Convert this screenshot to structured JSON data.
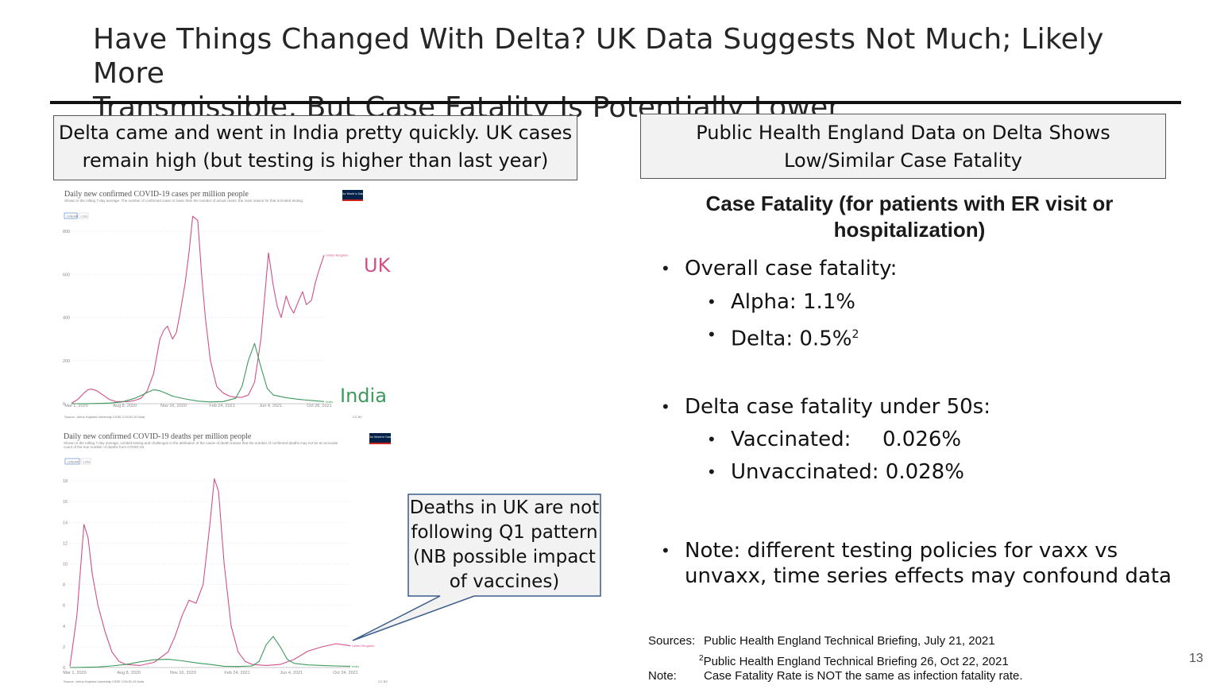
{
  "slide": {
    "title_line1": "Have Things Changed With Delta?  UK Data Suggests Not Much; Likely More",
    "title_line2": "Transmissible, But Case Fatality Is Potentially Lower",
    "page_number": "13"
  },
  "left_box": {
    "line1": "Delta came and went in India pretty quickly. UK cases",
    "line2": "remain high (but testing is higher than last year)"
  },
  "right_box": {
    "line1": "Public Health England Data on Delta Shows",
    "line2": "Low/Similar Case Fatality"
  },
  "case_fatality": {
    "heading_line1": "Case Fatality (for patients with ER visit or",
    "heading_line2": "hospitalization)",
    "overall_label": "Overall case fatality:",
    "alpha": "Alpha:  1.1%",
    "delta": "Delta:   0.5%",
    "delta_sup": "2",
    "under50_label": "Delta case fatality under 50s:",
    "vaccinated_label": "Vaccinated:",
    "vaccinated_value": "0.026%",
    "unvaccinated": "Unvaccinated:  0.028%",
    "note_line1": "Note: different testing policies for vaxx vs",
    "note_line2": "unvaxx, time series effects may confound data"
  },
  "sources": {
    "label_sources": "Sources:",
    "source1": "Public Health England Technical Briefing, July 21, 2021",
    "source2_sup": "2",
    "source2": "Public Health England Technical Briefing 26, Oct 22, 2021",
    "label_note": "Note:",
    "note": "Case Fatality Rate is NOT the same as infection fatality rate."
  },
  "annotations": {
    "uk": "UK",
    "india": "India",
    "callout_line1": "Deaths in UK are not",
    "callout_line2": "following Q1 pattern",
    "callout_line3": "(NB possible impact",
    "callout_line4": "of vaccines)"
  },
  "colors": {
    "uk": "#d0508a",
    "india": "#3d9a5c",
    "owid_navy": "#002147",
    "owid_red": "#ce261e"
  },
  "chart_data": [
    {
      "type": "line",
      "title": "Daily new confirmed COVID-19 cases per million people",
      "subtitle": "Shown is the rolling 7-day average. The number of confirmed cases is lower than the number of actual cases; the main reason for that is limited testing.",
      "toggle": [
        "LINEAR",
        "LOG"
      ],
      "logo": "Our World in Data",
      "source": "Source: Johns Hopkins University CSSE COVID-19 Data",
      "license": "CC BY",
      "x_ticks": [
        "Mar 1, 2020",
        "Aug 8, 2020",
        "Nov 16, 2020",
        "Feb 24, 2021",
        "Jun 4, 2021",
        "Oct 26, 2021"
      ],
      "y_ticks": [
        0,
        200,
        400,
        600,
        800
      ],
      "ylim": [
        0,
        900
      ],
      "series_x_unit": "months since Mar 1, 2020",
      "series": [
        {
          "name": "United Kingdom",
          "color": "#d0508a",
          "x": [
            0,
            0.5,
            1,
            1.3,
            1.6,
            2,
            2.5,
            3,
            3.5,
            4,
            4.5,
            5,
            5.5,
            6,
            6.5,
            7,
            7.3,
            7.6,
            8,
            8.3,
            8.6,
            9,
            9.3,
            9.6,
            10,
            10.3,
            10.6,
            11,
            11.5,
            12,
            12.5,
            13,
            13.5,
            14,
            14.5,
            15,
            15.3,
            15.6,
            16,
            16.3,
            16.6,
            17,
            17.3,
            17.6,
            18,
            18.3,
            18.6,
            19,
            19.3,
            19.6,
            20
          ],
          "values": [
            2,
            20,
            50,
            65,
            68,
            60,
            40,
            20,
            10,
            10,
            10,
            15,
            25,
            60,
            140,
            300,
            340,
            360,
            300,
            330,
            420,
            560,
            700,
            870,
            850,
            600,
            400,
            200,
            80,
            50,
            35,
            30,
            30,
            40,
            100,
            300,
            500,
            700,
            540,
            450,
            400,
            500,
            450,
            420,
            480,
            520,
            460,
            480,
            560,
            620,
            690
          ]
        },
        {
          "name": "India",
          "color": "#3d9a5c",
          "x": [
            0,
            1,
            2,
            3,
            4,
            5,
            5.5,
            6,
            6.5,
            7,
            7.5,
            8,
            9,
            10,
            11,
            12,
            13,
            13.5,
            14,
            14.5,
            15,
            15.5,
            16,
            17,
            18,
            19,
            20
          ],
          "values": [
            0,
            0,
            1,
            3,
            8,
            25,
            38,
            52,
            65,
            60,
            48,
            35,
            22,
            12,
            8,
            10,
            25,
            80,
            200,
            280,
            170,
            70,
            40,
            28,
            20,
            15,
            10
          ]
        }
      ]
    },
    {
      "type": "line",
      "title": "Daily new confirmed COVID-19 deaths per million people",
      "subtitle": "Shown is the rolling 7-day average. Limited testing and challenges in the attribution of the cause of death means that the number of confirmed deaths may not be an accurate count of the true number of deaths from COVID-19.",
      "toggle": [
        "LINEAR",
        "LOG"
      ],
      "logo": "Our World in Data",
      "source": "Source: Johns Hopkins University CSSE COVID-19 Data",
      "license": "CC BY",
      "x_ticks": [
        "Mar 1, 2020",
        "Aug 8, 2020",
        "Nov 16, 2020",
        "Feb 24, 2021",
        "Jun 4, 2021",
        "Oct 24, 2021"
      ],
      "y_ticks": [
        0,
        2,
        4,
        6,
        8,
        10,
        12,
        14,
        16,
        18
      ],
      "ylim": [
        0,
        19
      ],
      "series_x_unit": "months since Mar 1, 2020",
      "series": [
        {
          "name": "United Kingdom",
          "color": "#d0508a",
          "x": [
            0,
            0.5,
            1,
            1.3,
            1.6,
            2,
            2.5,
            3,
            3.5,
            4,
            5,
            6,
            7,
            7.5,
            8,
            8.5,
            9,
            9.5,
            10,
            10.3,
            10.6,
            11,
            11.5,
            12,
            12.5,
            13,
            14,
            15,
            16,
            17,
            18,
            19,
            20
          ],
          "values": [
            0.1,
            5,
            13.8,
            12.5,
            9,
            6,
            3.5,
            1.5,
            0.6,
            0.3,
            0.2,
            0.5,
            1.5,
            3,
            5,
            6.5,
            6.2,
            8,
            14,
            18.2,
            17,
            10,
            4,
            1.5,
            0.6,
            0.3,
            0.2,
            0.3,
            0.8,
            1.6,
            2,
            2.3,
            2.1
          ]
        },
        {
          "name": "India",
          "color": "#3d9a5c",
          "x": [
            0,
            2,
            3,
            4,
            5,
            6,
            7,
            8,
            9,
            10,
            11,
            12,
            13,
            13.5,
            14,
            14.5,
            15,
            15.5,
            16,
            17,
            18,
            19,
            20
          ],
          "values": [
            0,
            0.05,
            0.15,
            0.3,
            0.55,
            0.75,
            0.8,
            0.65,
            0.45,
            0.3,
            0.12,
            0.1,
            0.15,
            0.6,
            2.2,
            3.0,
            2.0,
            0.8,
            0.4,
            0.25,
            0.2,
            0.15,
            0.12
          ]
        }
      ]
    }
  ]
}
